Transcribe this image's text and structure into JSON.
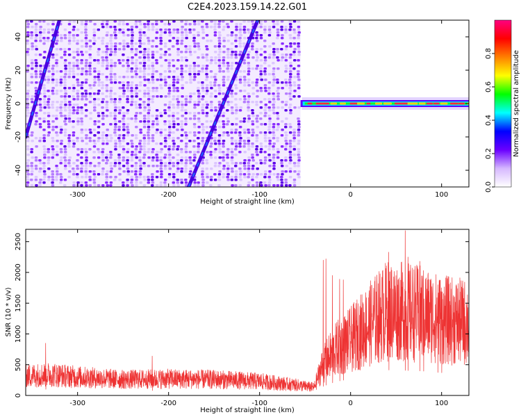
{
  "figure": {
    "title": "C2E4.2023.159.14.22.G01"
  },
  "chart_data": [
    {
      "type": "heatmap",
      "title": "C2E4.2023.159.14.22.G01",
      "xlabel": "Height of straight line (km)",
      "ylabel": "Frequency (Hz)",
      "xlim": [
        -357,
        130
      ],
      "ylim": [
        -50,
        50
      ],
      "xticks": [
        "-300",
        "-200",
        "-100",
        "0",
        "100"
      ],
      "xtick_values": [
        -300,
        -200,
        -100,
        0,
        100
      ],
      "yticks": [
        "40",
        "20",
        "0",
        "-20",
        "-40"
      ],
      "ytick_values": [
        40,
        20,
        0,
        -20,
        -40
      ],
      "grid": false,
      "colorbar": {
        "label": "Normalized spectral amplitude",
        "range": [
          0,
          1
        ],
        "ticks": [
          "0.0",
          "0.2",
          "0.4",
          "0.6",
          "0.8"
        ],
        "tick_values": [
          0.0,
          0.2,
          0.4,
          0.6,
          0.8
        ],
        "colors": [
          "#ffffff",
          "#d6b8ff",
          "#6a00ff",
          "#0000ff",
          "#00ffff",
          "#00ff00",
          "#ffff00",
          "#ff8000",
          "#ff0000",
          "#ff0080"
        ]
      },
      "noise_region_x": [
        -357,
        -55
      ],
      "signal": {
        "name": "0 Hz carrier",
        "x_range": [
          -55,
          130
        ],
        "frequency": 0
      },
      "streaks": [
        {
          "x": [
            -357,
            -320
          ],
          "y": [
            -20,
            50
          ]
        },
        {
          "x": [
            -178,
            -102
          ],
          "y": [
            -50,
            50
          ]
        }
      ]
    },
    {
      "type": "line",
      "xlabel": "Height of straight line (km)",
      "ylabel": "SNR (10 * v/v)",
      "xlim": [
        -357,
        130
      ],
      "ylim": [
        0,
        2700
      ],
      "xticks": [
        "-300",
        "-200",
        "-100",
        "0",
        "100"
      ],
      "xtick_values": [
        -300,
        -200,
        -100,
        0,
        100
      ],
      "yticks": [
        "0",
        "500",
        "1000",
        "1500",
        "2000",
        "2500"
      ],
      "ytick_values": [
        0,
        500,
        1000,
        1500,
        2000,
        2500
      ],
      "grid": false,
      "color": "#ee3333",
      "trend": {
        "x": [
          -357,
          -330,
          -300,
          -250,
          -200,
          -150,
          -100,
          -60,
          -40,
          -32,
          -25,
          -15,
          0,
          20,
          40,
          60,
          80,
          100,
          130
        ],
        "y": [
          320,
          340,
          300,
          260,
          270,
          260,
          230,
          170,
          130,
          450,
          600,
          760,
          900,
          1150,
          1380,
          1360,
          1320,
          1230,
          1180
        ]
      },
      "spikes": [
        {
          "x": -335,
          "y": 850
        },
        {
          "x": -218,
          "y": 640
        },
        {
          "x": -30,
          "y": 2200
        },
        {
          "x": -27,
          "y": 2220
        },
        {
          "x": -20,
          "y": 1950
        },
        {
          "x": -12,
          "y": 1890
        },
        {
          "x": -8,
          "y": 1880
        },
        {
          "x": 42,
          "y": 2330
        },
        {
          "x": 60,
          "y": 2680
        },
        {
          "x": 63,
          "y": 2250
        },
        {
          "x": 76,
          "y": 2180
        },
        {
          "x": 80,
          "y": 2030
        },
        {
          "x": 96,
          "y": 1800
        },
        {
          "x": 100,
          "y": 1750
        }
      ]
    }
  ]
}
